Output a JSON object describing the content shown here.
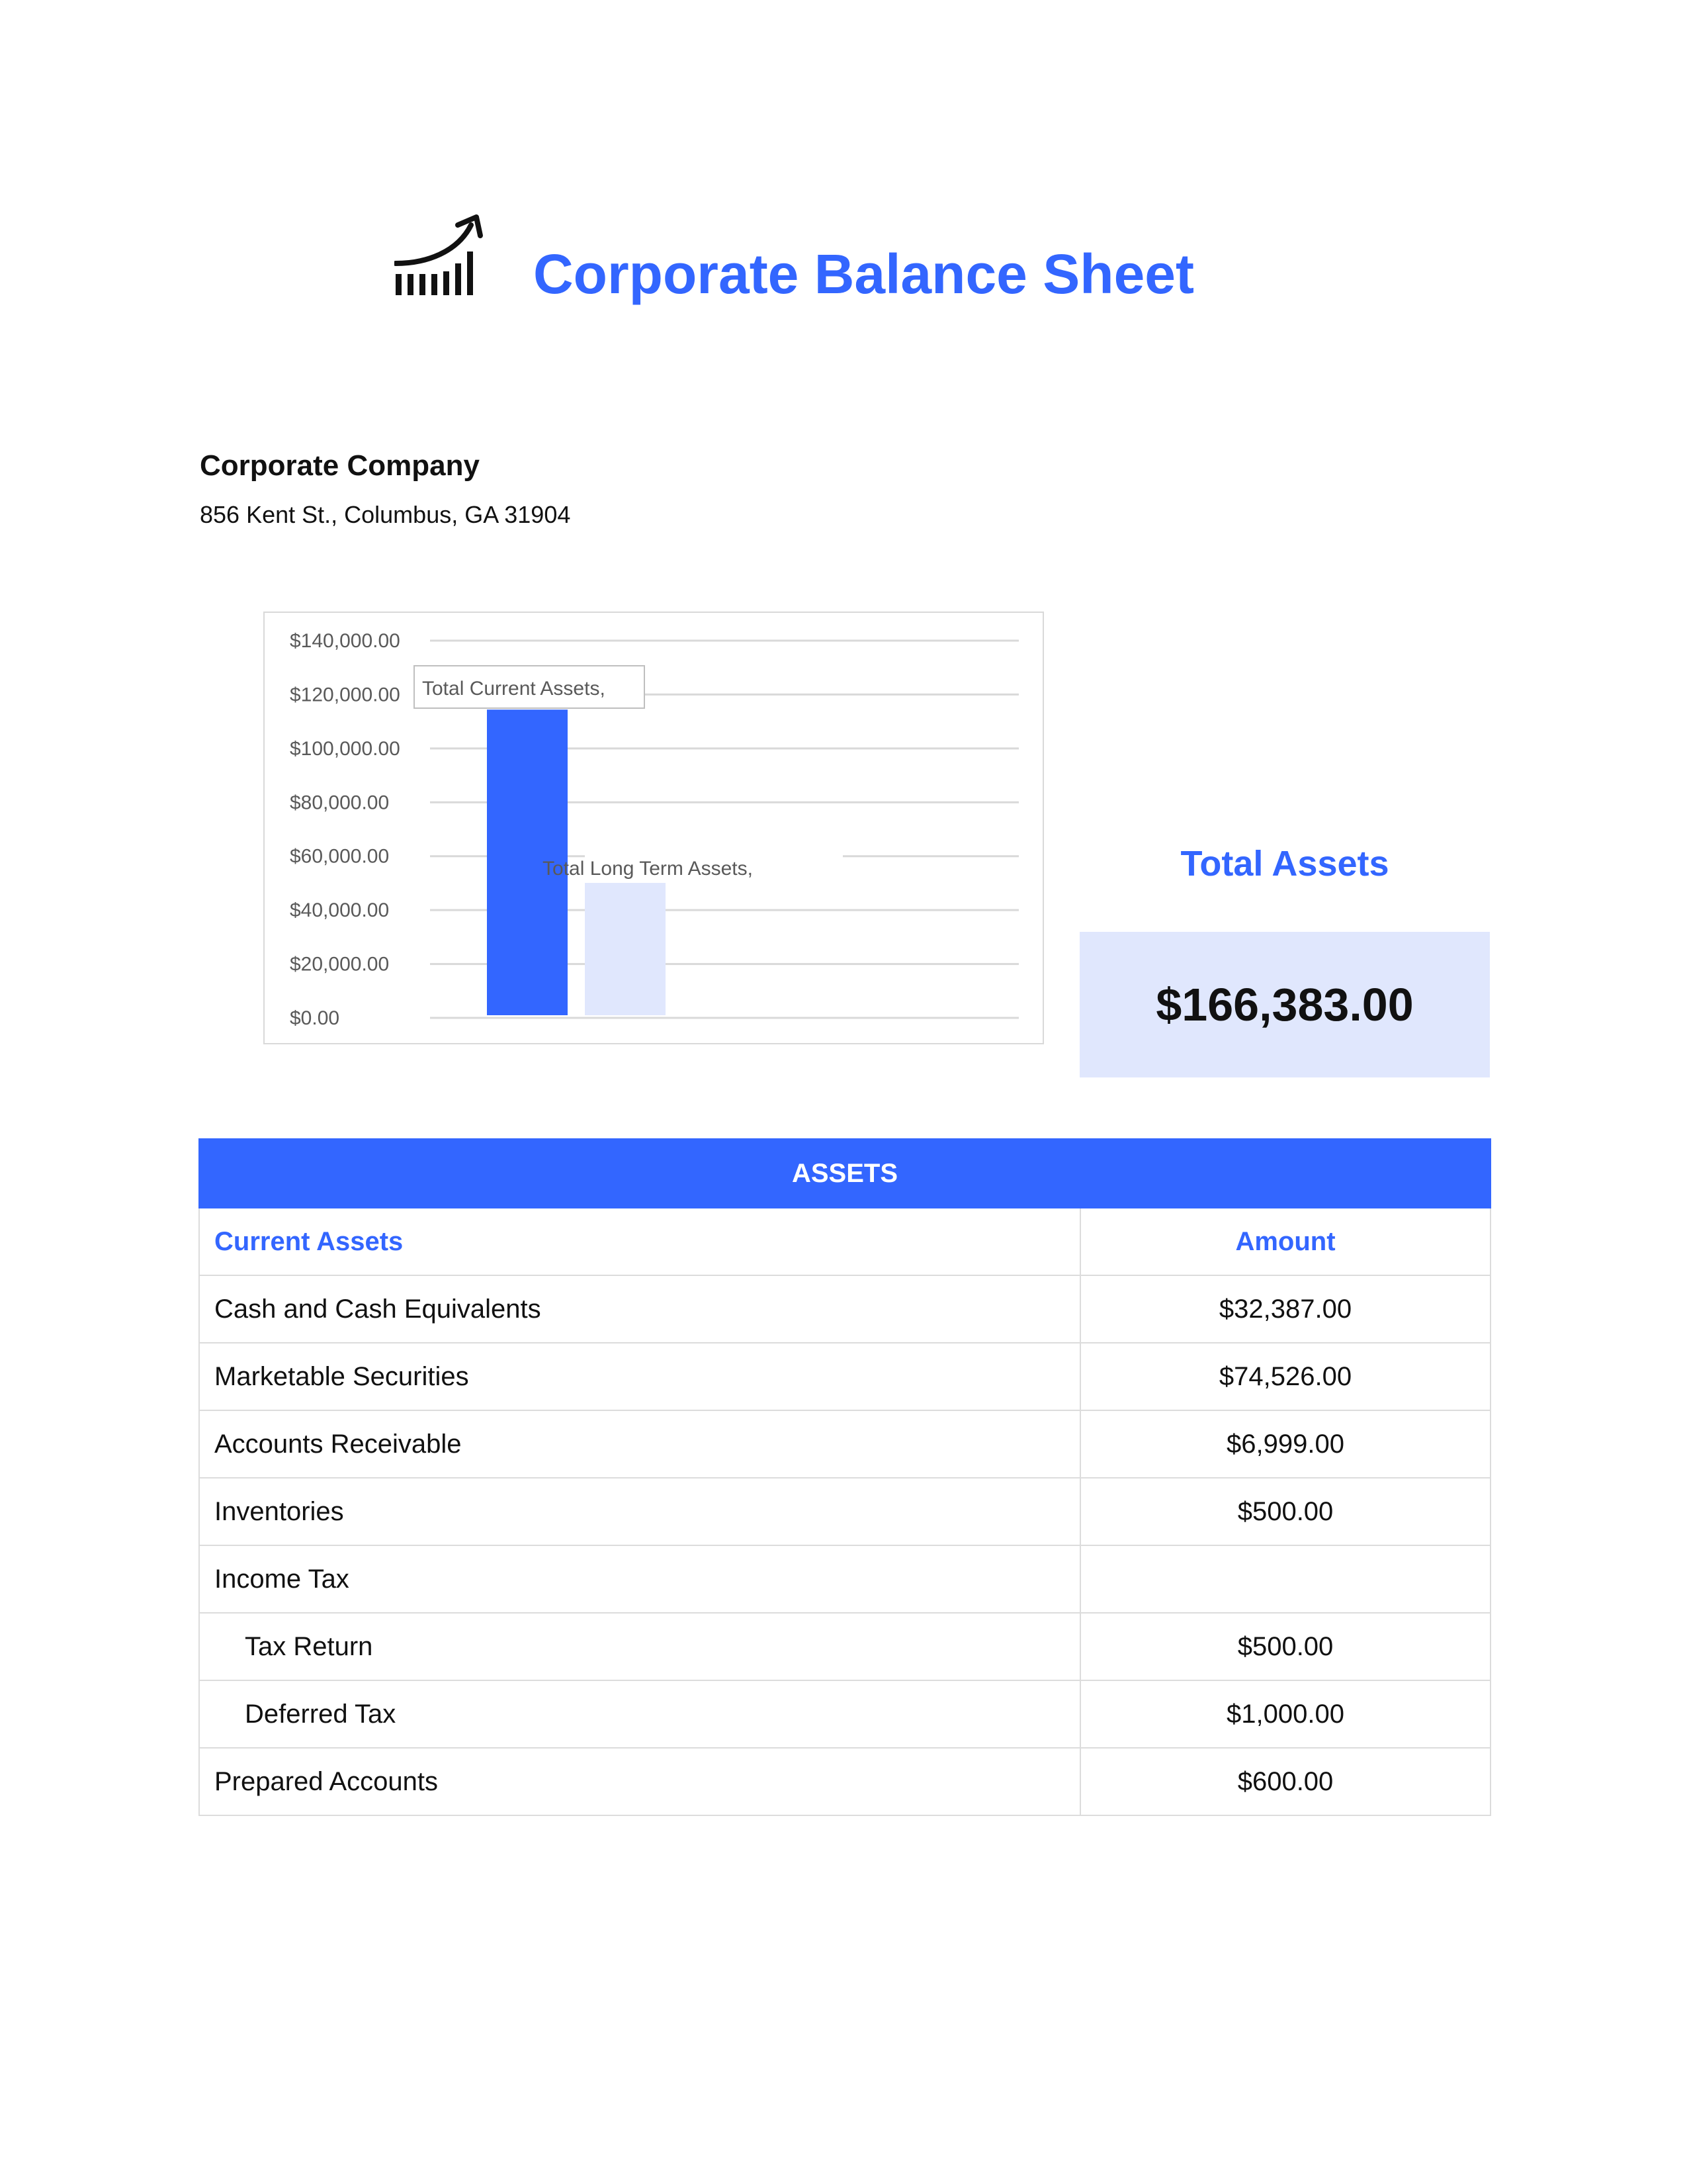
{
  "header": {
    "title": "Corporate Balance Sheet",
    "logo_icon": "chart-trend-up-icon"
  },
  "company": {
    "name": "Corporate Company",
    "address": "856 Kent St., Columbus, GA 31904"
  },
  "chart_data": {
    "type": "bar",
    "categories": [
      "Total Current Assets",
      "Total Long Term Assets"
    ],
    "values": [
      114412,
      51971
    ],
    "data_labels": [
      "Total Current Assets,",
      "Total Long Term Assets,"
    ],
    "ylim": [
      0,
      140000
    ],
    "y_ticks": [
      "$0.00",
      "$20,000.00",
      "$40,000.00",
      "$60,000.00",
      "$80,000.00",
      "$100,000.00",
      "$120,000.00",
      "$140,000.00"
    ],
    "y_tick_values": [
      0,
      20000,
      40000,
      60000,
      80000,
      100000,
      120000,
      140000
    ],
    "grid": true,
    "colors": [
      "#3366ff",
      "#e0e7fd"
    ],
    "title": "",
    "xlabel": "",
    "ylabel": ""
  },
  "total_assets": {
    "label": "Total Assets",
    "value": "$166,383.00"
  },
  "assets_table": {
    "title": "ASSETS",
    "col_label": "Current Assets",
    "col_amount": "Amount",
    "rows": [
      {
        "label": "Cash and Cash Equivalents",
        "amount": "$32,387.00"
      },
      {
        "label": "Marketable Securities",
        "amount": "$74,526.00"
      },
      {
        "label": "Accounts Receivable",
        "amount": "$6,999.00"
      },
      {
        "label": "Inventories",
        "amount": "$500.00"
      },
      {
        "label": "Income Tax",
        "amount": ""
      },
      {
        "label": "Tax Return",
        "amount": "$500.00"
      },
      {
        "label": "Deferred Tax",
        "amount": "$1,000.00"
      },
      {
        "label": "Prepared Accounts",
        "amount": "$600.00"
      }
    ]
  }
}
